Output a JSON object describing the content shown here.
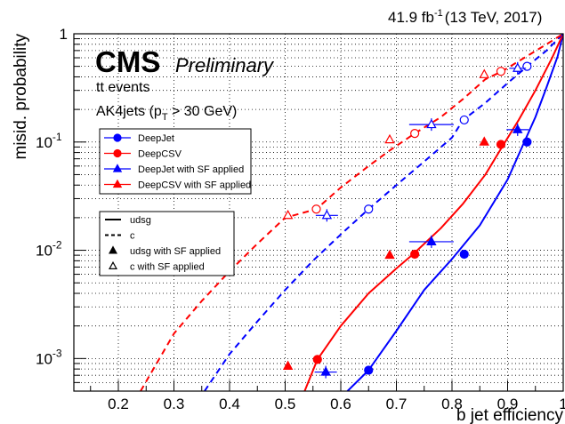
{
  "chart_data": {
    "type": "line",
    "header": {
      "lumi": "41.9 fb",
      "lumi_sup": "-1",
      "energy": "(13 TeV, 2017)"
    },
    "annotations": {
      "cms": "CMS",
      "preliminary": "Preliminary",
      "sample": "tt events",
      "jets_prefix": "AK4jets (p",
      "jets_sub": "T",
      "jets_suffix": " > 30 GeV)"
    },
    "xlabel": "b jet efficiency",
    "ylabel": "misid. probability",
    "xlim": [
      0.12,
      1.0
    ],
    "ylim": [
      0.0005,
      1
    ],
    "yscale": "log",
    "grid": true,
    "x_ticks": [
      "0.2",
      "0.3",
      "0.4",
      "0.5",
      "0.6",
      "0.7",
      "0.8",
      "0.9",
      "1"
    ],
    "y_ticks": [
      {
        "base": "10",
        "exp": "-3",
        "value": 0.001
      },
      {
        "base": "10",
        "exp": "-2",
        "value": 0.01
      },
      {
        "base": "10",
        "exp": "-1",
        "value": 0.1
      },
      {
        "base": "1",
        "exp": "",
        "value": 1
      }
    ],
    "series": [
      {
        "name": "DeepJet",
        "flavour": "udsg",
        "color": "#0000ff",
        "dashed": false,
        "x": [
          0.612,
          0.65,
          0.7,
          0.75,
          0.8,
          0.85,
          0.9,
          0.93,
          0.95,
          0.97,
          0.99,
          1.0
        ],
        "y": [
          0.0005,
          0.00078,
          0.0018,
          0.0043,
          0.0083,
          0.017,
          0.045,
          0.1,
          0.17,
          0.32,
          0.62,
          1.0
        ]
      },
      {
        "name": "DeepCSV",
        "flavour": "udsg",
        "color": "#ff0000",
        "dashed": false,
        "x": [
          0.535,
          0.558,
          0.6,
          0.65,
          0.7,
          0.73,
          0.78,
          0.82,
          0.86,
          0.89,
          0.92,
          0.95,
          0.98,
          1.0
        ],
        "y": [
          0.0005,
          0.00098,
          0.002,
          0.004,
          0.0068,
          0.0092,
          0.016,
          0.027,
          0.05,
          0.09,
          0.16,
          0.3,
          0.6,
          1.0
        ]
      },
      {
        "name": "DeepJet",
        "flavour": "c",
        "color": "#0000ff",
        "dashed": true,
        "x": [
          0.355,
          0.4,
          0.45,
          0.5,
          0.55,
          0.6,
          0.65,
          0.7,
          0.75,
          0.8,
          0.82,
          0.86,
          0.9,
          0.935,
          0.97,
          1.0
        ],
        "y": [
          0.0005,
          0.0011,
          0.0022,
          0.0043,
          0.008,
          0.014,
          0.024,
          0.04,
          0.066,
          0.11,
          0.16,
          0.23,
          0.35,
          0.5,
          0.7,
          1.0
        ]
      },
      {
        "name": "DeepCSV",
        "flavour": "c",
        "color": "#ff0000",
        "dashed": true,
        "x": [
          0.24,
          0.3,
          0.35,
          0.4,
          0.45,
          0.5,
          0.556,
          0.6,
          0.65,
          0.69,
          0.733,
          0.78,
          0.82,
          0.86,
          0.89,
          0.93,
          0.97,
          1.0
        ],
        "y": [
          0.0005,
          0.0017,
          0.0034,
          0.0064,
          0.0115,
          0.02,
          0.024,
          0.038,
          0.06,
          0.085,
          0.12,
          0.17,
          0.25,
          0.38,
          0.45,
          0.6,
          0.8,
          1.0
        ]
      }
    ],
    "points": [
      {
        "series": "DeepJet",
        "flavour": "udsg",
        "marker": "circle",
        "filled": true,
        "color": "#0000ff",
        "x": [
          0.65,
          0.822,
          0.935
        ],
        "y": [
          0.00078,
          0.0092,
          0.1
        ],
        "xerr": [
          0,
          0,
          0
        ]
      },
      {
        "series": "DeepCSV",
        "flavour": "udsg",
        "marker": "circle",
        "filled": true,
        "color": "#ff0000",
        "x": [
          0.558,
          0.733,
          0.888
        ],
        "y": [
          0.00098,
          0.0092,
          0.095
        ],
        "xerr": [
          0,
          0,
          0
        ]
      },
      {
        "series": "DeepJet",
        "flavour": "c",
        "marker": "circle",
        "filled": false,
        "color": "#0000ff",
        "x": [
          0.65,
          0.822,
          0.935
        ],
        "y": [
          0.024,
          0.16,
          0.5
        ],
        "xerr": [
          0,
          0,
          0
        ]
      },
      {
        "series": "DeepCSV",
        "flavour": "c",
        "marker": "circle",
        "filled": false,
        "color": "#ff0000",
        "x": [
          0.556,
          0.733,
          0.888
        ],
        "y": [
          0.024,
          0.12,
          0.45
        ],
        "xerr": [
          0,
          0,
          0
        ]
      },
      {
        "series": "DeepJet with SF applied",
        "flavour": "udsg",
        "marker": "triangle",
        "filled": true,
        "color": "#0000ff",
        "x": [
          0.573,
          0.763,
          0.918
        ],
        "y": [
          0.00075,
          0.012,
          0.13
        ],
        "xerr": [
          0.02,
          0.04,
          0.02
        ]
      },
      {
        "series": "DeepCSV with SF applied",
        "flavour": "udsg",
        "marker": "triangle",
        "filled": true,
        "color": "#ff0000",
        "x": [
          0.505,
          0.688,
          0.858
        ],
        "y": [
          0.00085,
          0.009,
          0.1
        ],
        "xerr": [
          0,
          0,
          0
        ]
      },
      {
        "series": "DeepJet with SF applied",
        "flavour": "c",
        "marker": "triangle",
        "filled": false,
        "color": "#0000ff",
        "x": [
          0.575,
          0.763,
          0.918
        ],
        "y": [
          0.021,
          0.145,
          0.48
        ],
        "xerr": [
          0.02,
          0.04,
          0.015
        ]
      },
      {
        "series": "DeepCSV with SF applied",
        "flavour": "c",
        "marker": "triangle",
        "filled": false,
        "color": "#ff0000",
        "x": [
          0.505,
          0.688,
          0.858
        ],
        "y": [
          0.021,
          0.105,
          0.42
        ],
        "xerr": [
          0,
          0,
          0
        ]
      }
    ],
    "legend_algos": [
      {
        "label": "DeepJet",
        "color": "#0000ff",
        "marker": "circle"
      },
      {
        "label": "DeepCSV",
        "color": "#ff0000",
        "marker": "circle"
      },
      {
        "label": "DeepJet with SF applied",
        "color": "#0000ff",
        "marker": "triangle"
      },
      {
        "label": "DeepCSV with SF applied",
        "color": "#ff0000",
        "marker": "triangle"
      }
    ],
    "legend_styles": [
      {
        "label": "udsg",
        "style": "solid"
      },
      {
        "label": "c",
        "style": "dashed"
      },
      {
        "label": "udsg with SF applied",
        "style": "filled-triangle"
      },
      {
        "label": "c with SF applied",
        "style": "open-triangle"
      }
    ]
  }
}
